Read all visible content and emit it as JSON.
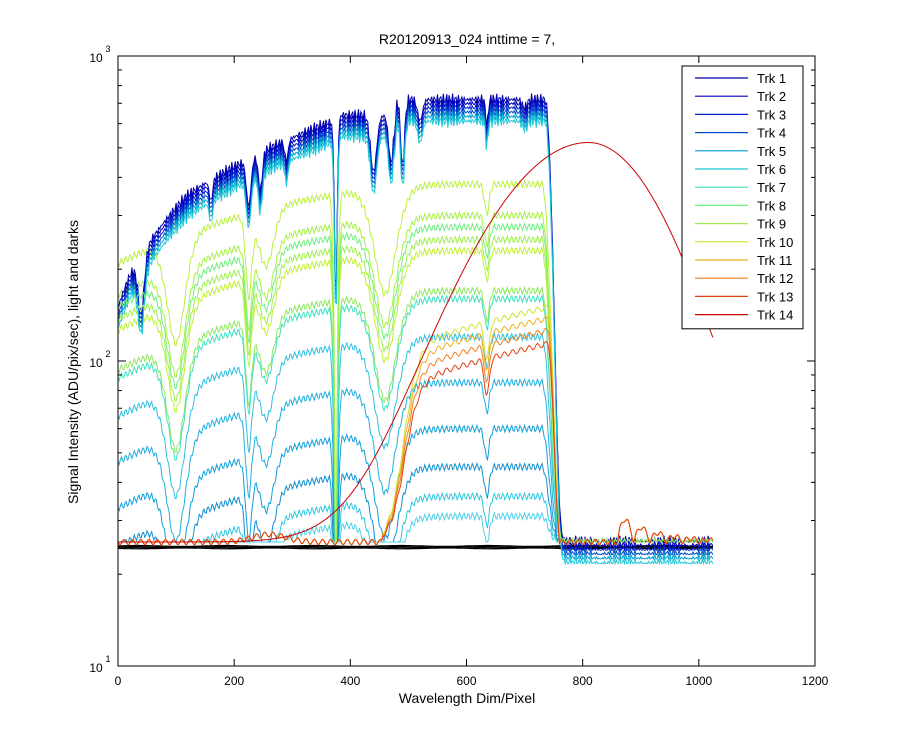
{
  "chart_data": {
    "type": "line",
    "title": "R20120913_024 inttime = 7,",
    "xlabel": "Wavelength Dim/Pixel",
    "ylabel": "Signal Intensity (ADU/pix/sec), light and darks",
    "xlim": [
      0,
      1200
    ],
    "ylim": [
      10,
      1000
    ],
    "yscale": "log",
    "xticks": [
      0,
      200,
      400,
      600,
      800,
      1000,
      1200
    ],
    "yticks": [
      {
        "base": "10",
        "exp": "1",
        "value": 10
      },
      {
        "base": "10",
        "exp": "2",
        "value": 100
      },
      {
        "base": "10",
        "exp": "3",
        "value": 1000
      }
    ],
    "legend_position": "top-right",
    "dark_color": "#000000",
    "series": [
      {
        "name": "Trk 1",
        "color": "#0000AA",
        "amp": 1.0,
        "bump": 0.0,
        "kind": "blue"
      },
      {
        "name": "Trk 2",
        "color": "#0000BF",
        "amp": 0.97,
        "bump": 0.0,
        "kind": "blue"
      },
      {
        "name": "Trk 3",
        "color": "#0020CC",
        "amp": 0.94,
        "bump": 0.0,
        "kind": "blue"
      },
      {
        "name": "Trk 4",
        "color": "#0050C8",
        "amp": 0.91,
        "bump": 0.0,
        "kind": "blue"
      },
      {
        "name": "Trk 5",
        "color": "#00A0D0",
        "amp": 0.88,
        "bump": 0.0,
        "kind": "blue"
      },
      {
        "name": "Trk 6",
        "color": "#20C8D8",
        "amp": 0.85,
        "bump": 0.0,
        "kind": "blue"
      },
      {
        "name": "Trk 7",
        "color": "#40E0C0",
        "amp": 0.82,
        "bump": 0.0,
        "kind": "cyan"
      },
      {
        "name": "Trk 8",
        "color": "#70F080",
        "amp": 0.8,
        "bump": 0.0,
        "kind": "green"
      },
      {
        "name": "Trk 9",
        "color": "#A0F050",
        "amp": 0.78,
        "bump": 0.0,
        "kind": "green"
      },
      {
        "name": "Trk 10",
        "color": "#D0E030",
        "amp": 0.76,
        "bump": 0.0,
        "kind": "yellow"
      },
      {
        "name": "Trk 11",
        "color": "#F0B020",
        "amp": 0.74,
        "bump": 0.0,
        "kind": "orange"
      },
      {
        "name": "Trk 12",
        "color": "#F08020",
        "amp": 0.72,
        "bump": 0.0,
        "kind": "orange"
      },
      {
        "name": "Trk 13",
        "color": "#E04010",
        "amp": 0.7,
        "bump": 0.0,
        "kind": "red"
      },
      {
        "name": "Trk 14",
        "color": "#CC0000",
        "amp": 1.0,
        "bump": 1.0,
        "kind": "peak"
      }
    ]
  }
}
